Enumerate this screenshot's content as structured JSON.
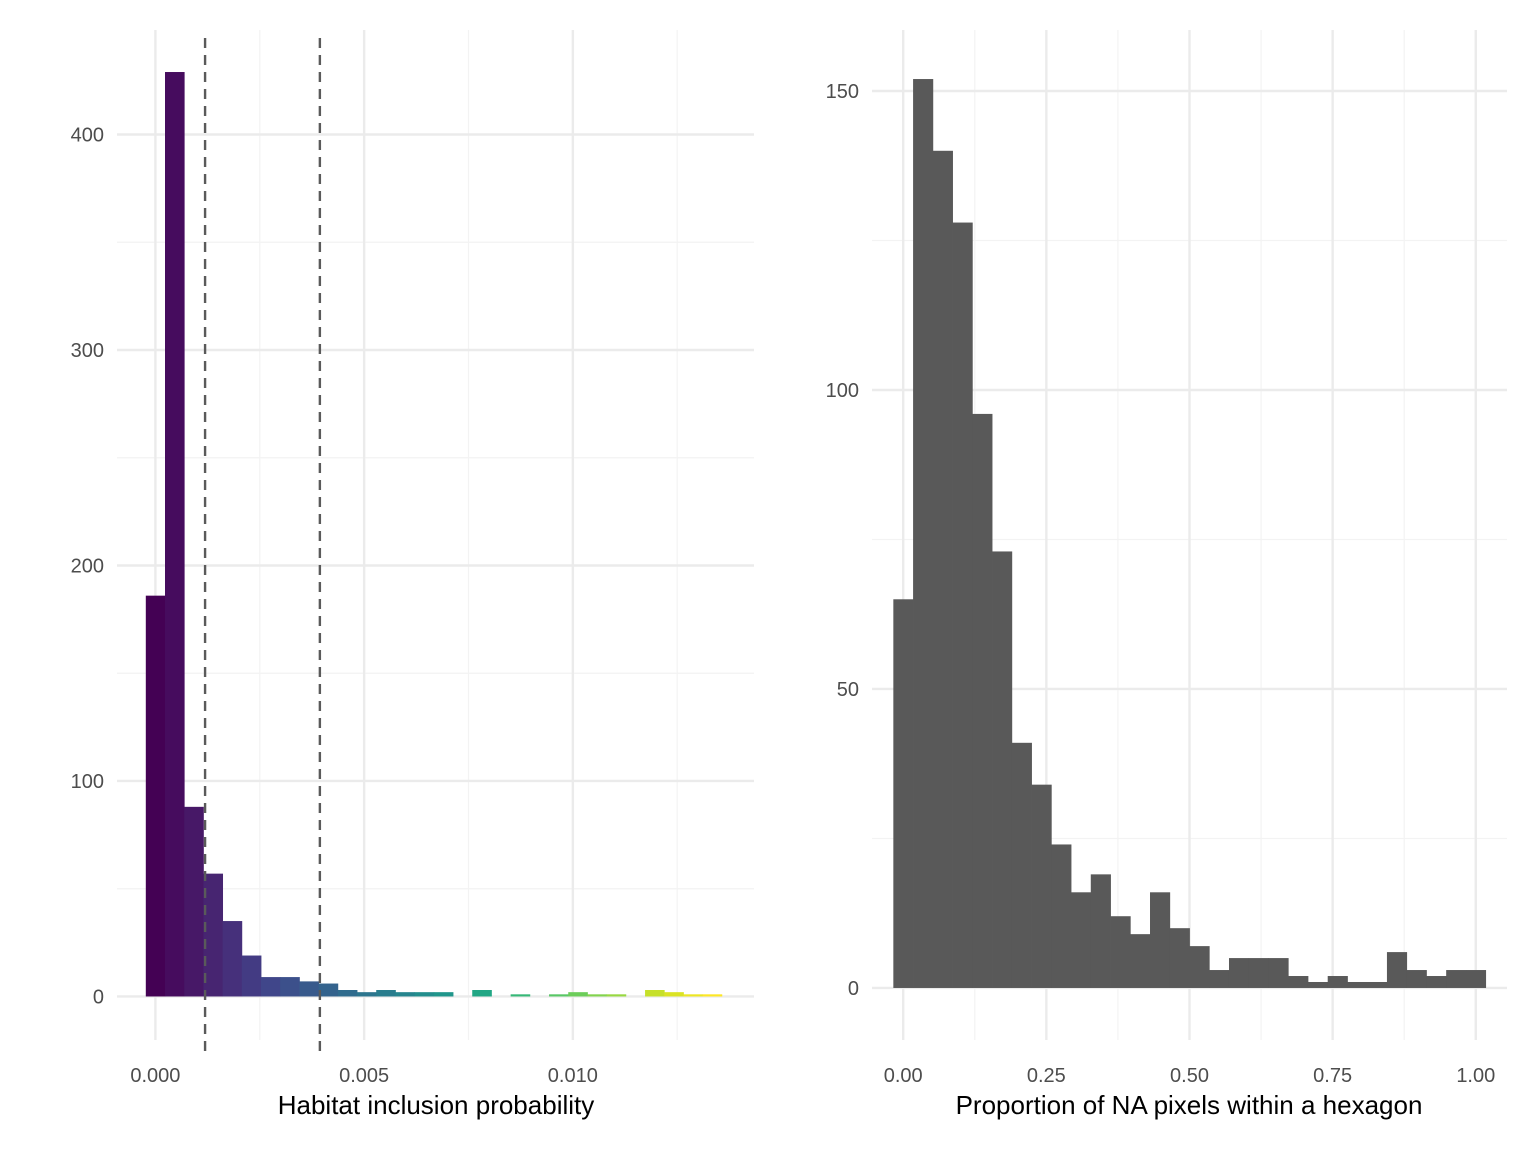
{
  "chart_data": [
    {
      "type": "bar",
      "subtype": "histogram",
      "xlabel": "Habitat inclusion probability",
      "ylabel": "",
      "xlim": [
        -0.00092,
        0.01434
      ],
      "ylim": [
        -20.2,
        448.5
      ],
      "x_ticks": [
        0.0,
        0.005,
        0.01
      ],
      "x_tick_labels": [
        "0.000",
        "0.005",
        "0.010"
      ],
      "x_minor_ticks": [
        0.0025,
        0.0075,
        0.0125
      ],
      "y_ticks": [
        0,
        100,
        200,
        300,
        400
      ],
      "y_tick_labels": [
        "0",
        "100",
        "200",
        "300",
        "400"
      ],
      "y_minor_ticks": [
        50,
        150,
        250,
        350
      ],
      "grid": true,
      "fill_scale": "viridis",
      "bin_width": 0.00046,
      "bin_centers": [
        0.0,
        0.00046,
        0.00092,
        0.00138,
        0.00184,
        0.0023,
        0.00276,
        0.00322,
        0.00368,
        0.00414,
        0.0046,
        0.00506,
        0.00552,
        0.00598,
        0.00644,
        0.0069,
        0.00736,
        0.00782,
        0.00828,
        0.00874,
        0.0092,
        0.00966,
        0.01012,
        0.01058,
        0.01104,
        0.0115,
        0.01196,
        0.01242,
        0.01288,
        0.01334
      ],
      "values": [
        186,
        429,
        88,
        57,
        35,
        19,
        9,
        9,
        7,
        6,
        3,
        2,
        3,
        2,
        2,
        2,
        0,
        3,
        0,
        1,
        0,
        1,
        2,
        1,
        1,
        0,
        3,
        2,
        1,
        1
      ],
      "colors": [
        "#440154",
        "#460c5e",
        "#471867",
        "#472571",
        "#46307b",
        "#433b83",
        "#40468a",
        "#3c508b",
        "#385a8c",
        "#34638d",
        "#306c8e",
        "#2c758e",
        "#297d8e",
        "#26858e",
        "#238e8d",
        "#20968b",
        "#1f9e89",
        "#22a785",
        "#2ab07f",
        "#36b877",
        "#45c06f",
        "#58c765",
        "#6ccd5a",
        "#82d34e",
        "#98d841",
        "#afdc34",
        "#c6e02a",
        "#dbe324",
        "#ede623",
        "#fde725"
      ],
      "dashed_lines_x": [
        0.00119,
        0.00394
      ]
    },
    {
      "type": "bar",
      "subtype": "histogram",
      "xlabel": "Proportion of NA pixels within a hexagon",
      "ylabel": "",
      "xlim": [
        -0.0545,
        1.0545
      ],
      "ylim": [
        -8.7,
        160.2
      ],
      "x_ticks": [
        0.0,
        0.25,
        0.5,
        0.75,
        1.0
      ],
      "x_tick_labels": [
        "0.00",
        "0.25",
        "0.50",
        "0.75",
        "1.00"
      ],
      "x_minor_ticks": [
        0.125,
        0.375,
        0.625,
        0.875
      ],
      "y_ticks": [
        0,
        50,
        100,
        150
      ],
      "y_tick_labels": [
        "0",
        "50",
        "100",
        "150"
      ],
      "y_minor_ticks": [
        25,
        75,
        125
      ],
      "grid": true,
      "fill": "#595959",
      "bin_width": 0.03448,
      "bin_centers": [
        0.0,
        0.03448,
        0.06897,
        0.10345,
        0.13793,
        0.17241,
        0.2069,
        0.24138,
        0.27586,
        0.31034,
        0.34483,
        0.37931,
        0.41379,
        0.44828,
        0.48276,
        0.51724,
        0.55172,
        0.58621,
        0.62069,
        0.65517,
        0.68966,
        0.72414,
        0.75862,
        0.7931,
        0.82759,
        0.86207,
        0.89655,
        0.93103,
        0.96552,
        1.0
      ],
      "values": [
        65,
        152,
        140,
        128,
        96,
        73,
        41,
        34,
        24,
        16,
        19,
        12,
        9,
        16,
        10,
        7,
        3,
        5,
        5,
        5,
        2,
        1,
        2,
        1,
        1,
        6,
        3,
        2,
        3,
        3
      ]
    }
  ]
}
